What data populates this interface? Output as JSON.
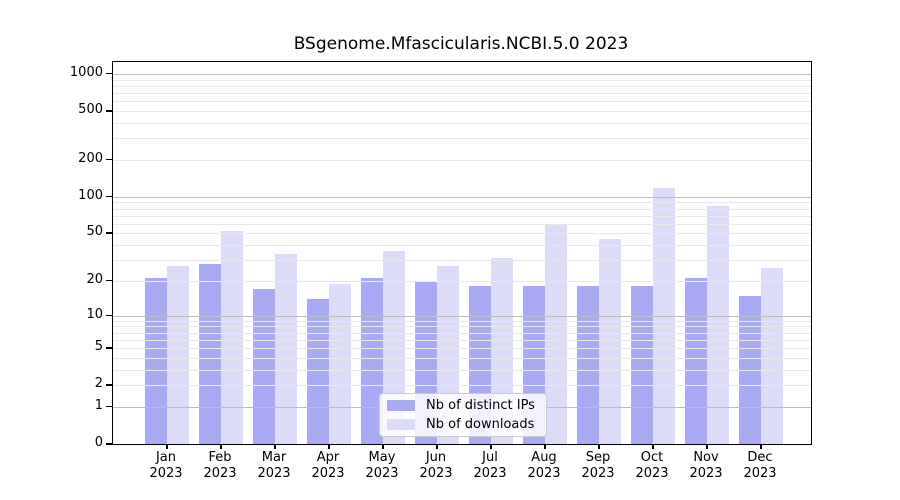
{
  "chart_data": {
    "type": "bar",
    "title": "BSgenome.Mfascicularis.NCBI.5.0 2023",
    "year": "2023",
    "categories": [
      "Jan",
      "Feb",
      "Mar",
      "Apr",
      "May",
      "Jun",
      "Jul",
      "Aug",
      "Sep",
      "Oct",
      "Nov",
      "Dec"
    ],
    "series": [
      {
        "name": "Nb of distinct IPs",
        "color": "#a9a9f4",
        "values": [
          21,
          28,
          17,
          14,
          21,
          20,
          18,
          18,
          18,
          18,
          21,
          15
        ]
      },
      {
        "name": "Nb of downloads",
        "color": "#dcdcf8",
        "values": [
          27,
          52,
          34,
          19,
          36,
          27,
          31,
          59,
          45,
          118,
          84,
          26
        ]
      }
    ],
    "y_scale": "log1p",
    "y_ticks": [
      0,
      1,
      2,
      5,
      10,
      20,
      50,
      100,
      200,
      500,
      1000
    ],
    "ylim": [
      0,
      1250
    ],
    "xlabel": "",
    "ylabel": "",
    "grid": "on",
    "legend_position": "inside-bottom-center"
  },
  "colors": {
    "background": "#ffffff",
    "grid_minor": "#e9e9e9",
    "grid_major": "#bdbdbd",
    "axis": "#000000",
    "legend_border": "#cccccc",
    "legend_background": "rgba(255,255,255,0.85)"
  }
}
